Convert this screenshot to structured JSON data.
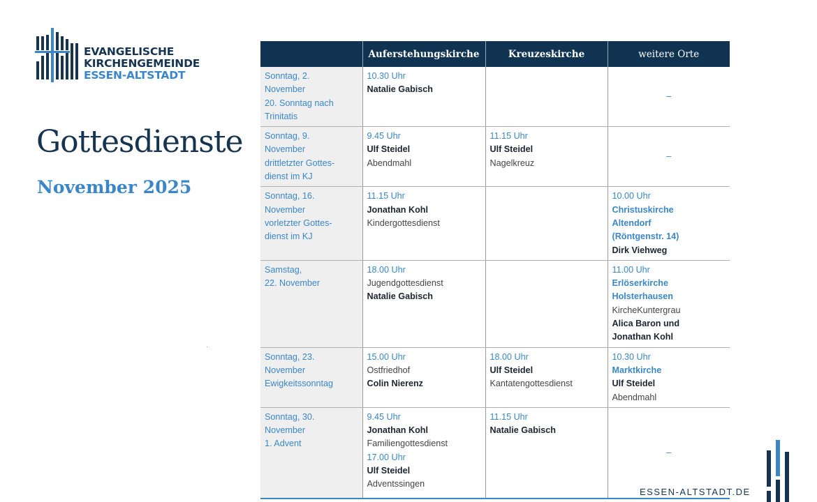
{
  "logo": {
    "line1": "EVANGELISCHE",
    "line2": "KIRCHENGEMEINDE",
    "line3": "ESSEN-ALTSTADT"
  },
  "title": "Gottesdienste",
  "subtitle": "November 2025",
  "colors": {
    "navy": "#0f3350",
    "blue": "#3a86c8",
    "date_bg": "#efefef"
  },
  "table": {
    "headers": [
      "",
      "Auferstehungskirche",
      "Kreuzeskirche",
      "weitere Orte"
    ],
    "rows": [
      {
        "height": 80,
        "date": [
          "Sonntag, 2.",
          "November",
          "20. Sonntag nach",
          "Trinitatis"
        ],
        "cells": [
          [
            {
              "t": "time",
              "v": "10.30 Uhr"
            },
            {
              "t": "name",
              "v": "Natalie Gabisch"
            }
          ],
          [],
          "–"
        ]
      },
      {
        "height": 82,
        "date": [
          "Sonntag, 9.",
          "November",
          "drittletzter Gottes-",
          "dienst im KJ"
        ],
        "cells": [
          [
            {
              "t": "time",
              "v": "9.45 Uhr"
            },
            {
              "t": "name",
              "v": "Ulf Steidel"
            },
            {
              "t": "note",
              "v": "Abendmahl"
            }
          ],
          [
            {
              "t": "time",
              "v": "11.15 Uhr"
            },
            {
              "t": "name",
              "v": "Ulf Steidel"
            },
            {
              "t": "note",
              "v": "Nagelkreuz"
            }
          ],
          "–"
        ]
      },
      {
        "height": 99,
        "date": [
          "Sonntag, 16.",
          "November",
          "vorletzter Gottes-",
          "dienst im KJ"
        ],
        "cells": [
          [
            {
              "t": "time",
              "v": "11.15 Uhr"
            },
            {
              "t": "name",
              "v": "Jonathan Kohl"
            },
            {
              "t": "note",
              "v": "Kindergottesdienst"
            }
          ],
          [],
          [
            {
              "t": "time",
              "v": "10.00 Uhr"
            },
            {
              "t": "place",
              "v": "Christuskirche"
            },
            {
              "t": "place",
              "v": "Altendorf"
            },
            {
              "t": "place",
              "v": "(Röntgenstr. 14)"
            },
            {
              "t": "name",
              "v": "Dirk Viehweg"
            }
          ]
        ]
      },
      {
        "height": 116,
        "date": [
          "Samstag,",
          "22. November"
        ],
        "cells": [
          [
            {
              "t": "time",
              "v": "18.00 Uhr"
            },
            {
              "t": "note",
              "v": "Jugendgottesdienst"
            },
            {
              "t": "name",
              "v": "Natalie Gabisch"
            }
          ],
          [],
          [
            {
              "t": "time",
              "v": "11.00 Uhr"
            },
            {
              "t": "place",
              "v": "Erlöserkirche"
            },
            {
              "t": "place",
              "v": "Holsterhausen"
            },
            {
              "t": "note",
              "v": "KircheKuntergrau"
            },
            {
              "t": "name",
              "v": "Alica Baron und"
            },
            {
              "t": "name",
              "v": "Jonathan Kohl"
            }
          ]
        ]
      },
      {
        "height": 80,
        "date": [
          "Sonntag, 23.",
          "November",
          "Ewigkeitssonntag"
        ],
        "cells": [
          [
            {
              "t": "time",
              "v": "15.00 Uhr"
            },
            {
              "t": "note",
              "v": "Ostfriedhof"
            },
            {
              "t": "name",
              "v": "Colin Nierenz"
            }
          ],
          [
            {
              "t": "time",
              "v": "18.00 Uhr"
            },
            {
              "t": "name",
              "v": "Ulf Steidel"
            },
            {
              "t": "note",
              "v": "Kantatengottesdienst"
            }
          ],
          [
            {
              "t": "time",
              "v": "10.30 Uhr"
            },
            {
              "t": "place",
              "v": "Marktkirche"
            },
            {
              "t": "name",
              "v": "Ulf Steidel"
            },
            {
              "t": "note",
              "v": "Abendmahl"
            }
          ]
        ]
      },
      {
        "height": 131,
        "date": [
          "Sonntag, 30.",
          "November",
          "1. Advent"
        ],
        "cells": [
          [
            {
              "t": "time",
              "v": "9.45 Uhr"
            },
            {
              "t": "name",
              "v": "Jonathan Kohl"
            },
            {
              "t": "note",
              "v": "Familiengottesdienst"
            },
            {
              "t": "time",
              "v": "17.00 Uhr"
            },
            {
              "t": "name",
              "v": "Ulf Steidel"
            },
            {
              "t": "note",
              "v": "Adventssingen"
            }
          ],
          [
            {
              "t": "time",
              "v": "11.15 Uhr"
            },
            {
              "t": "name",
              "v": "Natalie Gabisch"
            }
          ],
          "–"
        ]
      }
    ]
  },
  "footer": {
    "url": "ESSEN-ALTSTADT.DE"
  }
}
